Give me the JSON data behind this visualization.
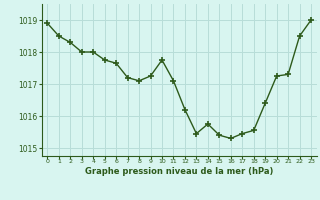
{
  "x": [
    0,
    1,
    2,
    3,
    4,
    5,
    6,
    7,
    8,
    9,
    10,
    11,
    12,
    13,
    14,
    15,
    16,
    17,
    18,
    19,
    20,
    21,
    22,
    23
  ],
  "y": [
    1018.9,
    1018.5,
    1018.3,
    1018.0,
    1018.0,
    1017.75,
    1017.65,
    1017.2,
    1017.1,
    1017.25,
    1017.75,
    1017.1,
    1016.2,
    1015.45,
    1015.75,
    1015.4,
    1015.3,
    1015.45,
    1015.55,
    1016.4,
    1017.25,
    1017.3,
    1018.5,
    1019.0
  ],
  "line_color": "#2d5a1b",
  "marker_color": "#2d5a1b",
  "bg_color": "#d8f5f0",
  "grid_color": "#b8ddd8",
  "xlabel": "Graphe pression niveau de la mer (hPa)",
  "xlabel_color": "#2d5a1b",
  "tick_color": "#2d5a1b",
  "ylim": [
    1014.75,
    1019.5
  ],
  "xlim": [
    -0.5,
    23.5
  ],
  "yticks": [
    1015,
    1016,
    1017,
    1018,
    1019
  ],
  "xticks": [
    0,
    1,
    2,
    3,
    4,
    5,
    6,
    7,
    8,
    9,
    10,
    11,
    12,
    13,
    14,
    15,
    16,
    17,
    18,
    19,
    20,
    21,
    22,
    23
  ],
  "xtick_labels": [
    "0",
    "1",
    "2",
    "3",
    "4",
    "5",
    "6",
    "7",
    "8",
    "9",
    "10",
    "11",
    "12",
    "13",
    "14",
    "15",
    "16",
    "17",
    "18",
    "19",
    "20",
    "21",
    "22",
    "23"
  ],
  "marker_size": 4,
  "line_width": 1.0,
  "fig_width": 3.2,
  "fig_height": 2.0,
  "dpi": 100
}
